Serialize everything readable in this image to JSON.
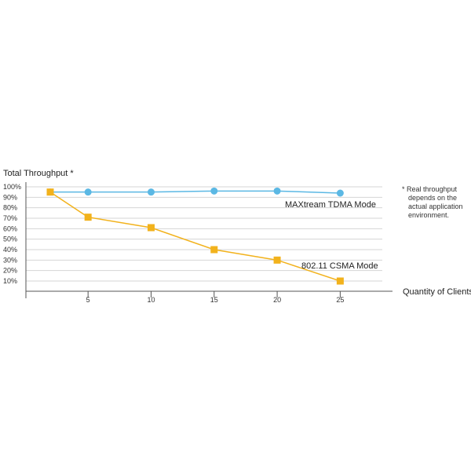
{
  "chart_data": {
    "type": "line",
    "ylabel": "Total Throughput *",
    "xlabel": "Quantity of Clients",
    "y_ticks": [
      "100%",
      "90%",
      "80%",
      "70%",
      "60%",
      "50%",
      "40%",
      "30%",
      "20%",
      "10%"
    ],
    "x_ticks": [
      "5",
      "10",
      "15",
      "20",
      "25"
    ],
    "xlim": [
      0,
      31
    ],
    "ylim": [
      0,
      100
    ],
    "grid": true,
    "series": [
      {
        "name": "MAXtream TDMA Mode",
        "color": "#5bb8e4",
        "marker": "circle",
        "x": [
          2,
          5,
          10,
          15,
          20,
          25
        ],
        "y": [
          95,
          95,
          95,
          96,
          96,
          94
        ]
      },
      {
        "name": "802.11 CSMA Mode",
        "color": "#f2b21c",
        "marker": "square",
        "x": [
          2,
          5,
          10,
          15,
          20,
          25
        ],
        "y": [
          95,
          71,
          61,
          40,
          30,
          10
        ]
      }
    ]
  },
  "note": {
    "lines": [
      "* Real throughput",
      "depends on the",
      "actual application",
      "environment."
    ]
  }
}
